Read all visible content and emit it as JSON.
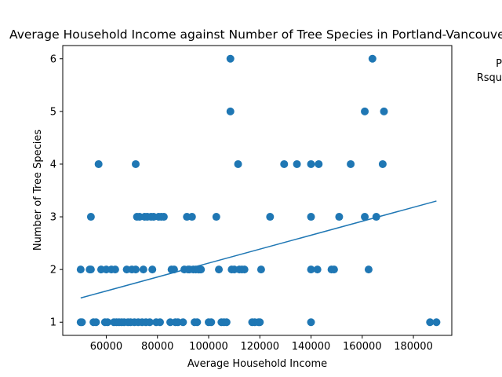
{
  "chart_data": {
    "type": "scatter",
    "title": "Average Household Income against Number of Tree Species in Portland-Vancouver",
    "xlabel": "Average Household Income",
    "ylabel": "Number of Tree Species",
    "xlim": [
      43000,
      195000
    ],
    "ylim": [
      0.75,
      6.25
    ],
    "xticks": [
      60000,
      80000,
      100000,
      120000,
      140000,
      160000,
      180000
    ],
    "xtick_labels": [
      "60000",
      "80000",
      "100000",
      "120000",
      "140000",
      "160000",
      "180000"
    ],
    "yticks": [
      1,
      2,
      3,
      4,
      5,
      6
    ],
    "ytick_labels": [
      "1",
      "2",
      "3",
      "4",
      "5",
      "6"
    ],
    "grid": false,
    "side_text": [
      "P",
      "Rsqu"
    ],
    "colors": {
      "points": "#1f77b4",
      "fit_line": "#1f77b4"
    },
    "fit_line": {
      "x": [
        50000,
        189000
      ],
      "y": [
        1.46,
        3.3
      ]
    },
    "points": [
      [
        50000,
        2
      ],
      [
        50000,
        1
      ],
      [
        50500,
        1
      ],
      [
        53500,
        2
      ],
      [
        54000,
        2
      ],
      [
        54000,
        3
      ],
      [
        55000,
        1
      ],
      [
        56000,
        1
      ],
      [
        57000,
        4
      ],
      [
        58000,
        2
      ],
      [
        59500,
        1
      ],
      [
        60000,
        2
      ],
      [
        60500,
        1
      ],
      [
        62000,
        2
      ],
      [
        63000,
        1
      ],
      [
        63500,
        2
      ],
      [
        64000,
        1
      ],
      [
        65000,
        1
      ],
      [
        66000,
        1
      ],
      [
        67000,
        1
      ],
      [
        68000,
        2
      ],
      [
        68500,
        1
      ],
      [
        69500,
        1
      ],
      [
        70000,
        2
      ],
      [
        71000,
        1
      ],
      [
        71500,
        4
      ],
      [
        71500,
        2
      ],
      [
        72000,
        3
      ],
      [
        72500,
        1
      ],
      [
        73000,
        3
      ],
      [
        74000,
        1
      ],
      [
        74500,
        2
      ],
      [
        75000,
        3
      ],
      [
        75500,
        1
      ],
      [
        76000,
        3
      ],
      [
        77000,
        1
      ],
      [
        77500,
        3
      ],
      [
        78000,
        2
      ],
      [
        78500,
        3
      ],
      [
        79500,
        1
      ],
      [
        80500,
        3
      ],
      [
        81000,
        1
      ],
      [
        81500,
        3
      ],
      [
        82500,
        3
      ],
      [
        85000,
        1
      ],
      [
        85500,
        2
      ],
      [
        86500,
        2
      ],
      [
        87000,
        1
      ],
      [
        88000,
        1
      ],
      [
        90000,
        1
      ],
      [
        90500,
        2
      ],
      [
        91500,
        3
      ],
      [
        92000,
        2
      ],
      [
        92500,
        2
      ],
      [
        93500,
        3
      ],
      [
        94000,
        2
      ],
      [
        95000,
        2
      ],
      [
        94500,
        1
      ],
      [
        95500,
        1
      ],
      [
        96000,
        2
      ],
      [
        97000,
        2
      ],
      [
        100000,
        1
      ],
      [
        101000,
        1
      ],
      [
        103000,
        3
      ],
      [
        104000,
        2
      ],
      [
        105000,
        1
      ],
      [
        106000,
        1
      ],
      [
        107000,
        1
      ],
      [
        108500,
        6
      ],
      [
        108500,
        5
      ],
      [
        109000,
        2
      ],
      [
        110000,
        2
      ],
      [
        111500,
        4
      ],
      [
        112000,
        2
      ],
      [
        113000,
        2
      ],
      [
        114000,
        2
      ],
      [
        117000,
        1
      ],
      [
        118000,
        1
      ],
      [
        119500,
        1
      ],
      [
        120000,
        1
      ],
      [
        120500,
        2
      ],
      [
        124000,
        3
      ],
      [
        129500,
        4
      ],
      [
        134500,
        4
      ],
      [
        140000,
        4
      ],
      [
        140000,
        3
      ],
      [
        140000,
        2
      ],
      [
        140000,
        1
      ],
      [
        142500,
        2
      ],
      [
        143000,
        4
      ],
      [
        148000,
        2
      ],
      [
        149000,
        2
      ],
      [
        151000,
        3
      ],
      [
        155500,
        4
      ],
      [
        161000,
        5
      ],
      [
        161000,
        3
      ],
      [
        162500,
        2
      ],
      [
        164000,
        6
      ],
      [
        165500,
        3
      ],
      [
        168000,
        4
      ],
      [
        168500,
        5
      ],
      [
        186500,
        1
      ],
      [
        189000,
        1
      ]
    ]
  }
}
